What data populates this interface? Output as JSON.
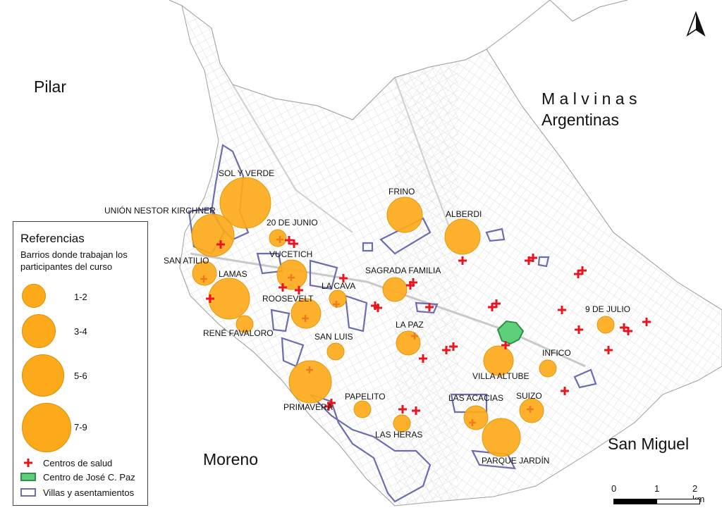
{
  "departments": {
    "pilar": "Pilar",
    "malvinas_line1": "M a l v i n a s",
    "malvinas_line2": "Argentinas",
    "moreno": "Moreno",
    "san_miguel": "San Miguel"
  },
  "barrios": {
    "sol_y_verde": "SOL Y VERDE",
    "union_nestor_kirchner": "UNIÓN NESTOR KIRCHNER",
    "veinte_de_junio": "20 DE JUNIO",
    "frino": "FRINO",
    "alberdi": "ALBERDI",
    "vucetich": "VUCETICH",
    "san_atilio": "SAN ATILIO",
    "lamas": "LAMAS",
    "sagrada_familia": "SAGRADA FAMILIA",
    "la_cava": "LA CAVA",
    "roosevelt": "ROOSEVELT",
    "rene_favaloro": "RENÉ FAVALORO",
    "san_luis": "SAN LUIS",
    "la_paz": "LA PAZ",
    "nueve_de_julio": "9 DE JULIO",
    "infico": "INFICO",
    "villa_altube": "VILLA ALTUBE",
    "primavera": "PRIMAVERA",
    "papelito": "PAPELITO",
    "las_acacias": "LAS ACACIAS",
    "suizo": "SUIZO",
    "las_heras": "LAS HERAS",
    "parque_jardin": "PARQUE JARDÍN"
  },
  "legend": {
    "title": "Referencias",
    "subtitle": "Barrios donde trabajan los participantes del curso",
    "class_1": "1-2",
    "class_2": "3-4",
    "class_3": "5-6",
    "class_4": "7-9",
    "health": "Centros de salud",
    "center": "Centro de José C. Paz",
    "villas": "Villas y asentamientos"
  },
  "scale": {
    "zero": "0",
    "one": "1",
    "two": "2 km"
  },
  "colors": {
    "barrio_fill": "#FDAA1A",
    "health_center": "#E8141E",
    "villas_outline": "#6C6CB0",
    "center_fill": "#5FD07A",
    "streets": "#d8d8d8",
    "boundary": "#9a9a9a"
  },
  "icons": {
    "north": "north-arrow-icon",
    "health": "plus-cross-icon"
  }
}
